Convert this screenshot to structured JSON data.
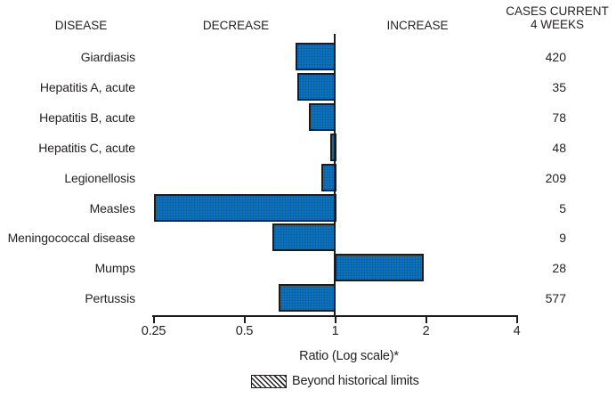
{
  "header": {
    "disease": "DISEASE",
    "decrease": "DECREASE",
    "increase": "INCREASE",
    "cases_line1": "CASES CURRENT",
    "cases_line2": "4 WEEKS"
  },
  "chart_data": {
    "type": "bar",
    "orientation": "horizontal",
    "scale": "log",
    "title": "",
    "xlabel": "Ratio (Log scale)*",
    "axis": {
      "ticks": [
        0.25,
        0.5,
        1,
        2,
        4
      ],
      "tick_labels": [
        "0.25",
        "0.5",
        "1",
        "2",
        "4"
      ],
      "baseline": 1,
      "xlim": [
        0.25,
        4
      ]
    },
    "rows": [
      {
        "disease": "Giardiasis",
        "ratio": 0.74,
        "cases": "420",
        "beyond_limits": false
      },
      {
        "disease": "Hepatitis A, acute",
        "ratio": 0.75,
        "cases": "35",
        "beyond_limits": false
      },
      {
        "disease": "Hepatitis B, acute",
        "ratio": 0.82,
        "cases": "78",
        "beyond_limits": false
      },
      {
        "disease": "Hepatitis C, acute",
        "ratio": 0.96,
        "cases": "48",
        "beyond_limits": false
      },
      {
        "disease": "Legionellosis",
        "ratio": 0.9,
        "cases": "209",
        "beyond_limits": false
      },
      {
        "disease": "Measles",
        "ratio": 0.25,
        "cases": "5",
        "beyond_limits": false
      },
      {
        "disease": "Meningococcal disease",
        "ratio": 0.62,
        "cases": "9",
        "beyond_limits": false
      },
      {
        "disease": "Mumps",
        "ratio": 1.97,
        "cases": "28",
        "beyond_limits": false
      },
      {
        "disease": "Pertussis",
        "ratio": 0.65,
        "cases": "577",
        "beyond_limits": false
      }
    ],
    "legend": {
      "label": "Beyond historical limits",
      "swatch": "hatched"
    }
  },
  "colors": {
    "bar_fill": "#0c70c8",
    "bar_border": "#1b1b1b",
    "text": "#231f20",
    "axis": "#1b1b1b"
  }
}
